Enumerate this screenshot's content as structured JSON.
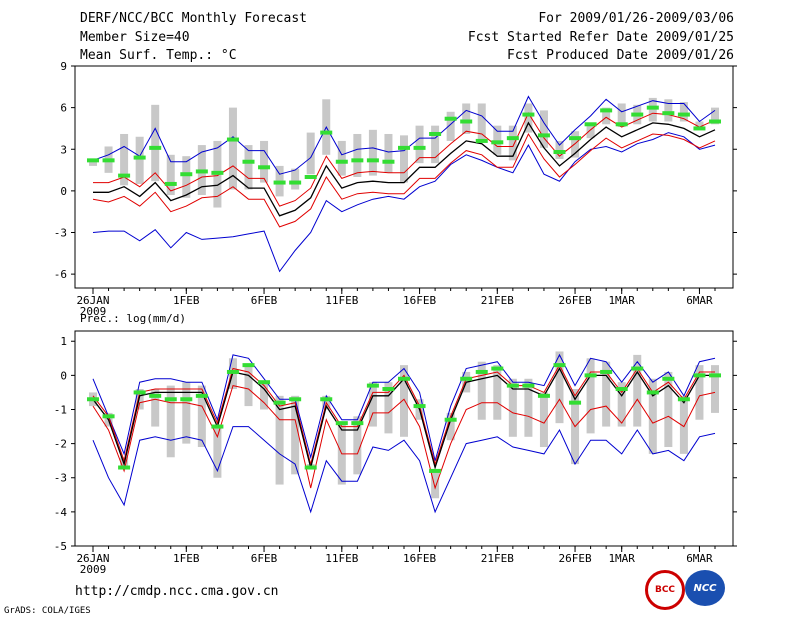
{
  "header": {
    "title": "DERF/NCC/BCC Monthly Forecast",
    "member_size": "Member Size=40",
    "variable": "Mean Surf. Temp.: °C",
    "period": "For 2009/01/26-2009/03/06",
    "started": "Fcst Started Refer Date 2009/01/25",
    "produced": "Fcst Produced Date 2009/01/26"
  },
  "footer": {
    "url": "http://cmdp.ncc.cma.gov.cn",
    "grads": "GrADS: COLA/IGES",
    "logo1_text": "BCC",
    "logo2_text": "NCC"
  },
  "colors": {
    "bar": "#c8c8c8",
    "mean": "#000000",
    "inner": "#e00000",
    "outer": "#0000d0",
    "marker": "#33dd33"
  },
  "chart_data": [
    {
      "type": "line",
      "title": "Mean Surf. Temp.: °C",
      "x_labels": [
        {
          "day": 0,
          "label": "26JAN"
        },
        {
          "day": 6,
          "label": "1FEB"
        },
        {
          "day": 11,
          "label": "6FEB"
        },
        {
          "day": 16,
          "label": "11FEB"
        },
        {
          "day": 21,
          "label": "16FEB"
        },
        {
          "day": 26,
          "label": "21FEB"
        },
        {
          "day": 31,
          "label": "26FEB"
        },
        {
          "day": 34,
          "label": "1MAR"
        },
        {
          "day": 39,
          "label": "6MAR"
        }
      ],
      "year_label": "2009",
      "ylim": [
        -7,
        9
      ],
      "yticks": [
        -6,
        -3,
        0,
        3,
        6,
        9
      ],
      "series": [
        {
          "name": "mean",
          "values": [
            -0.1,
            -0.1,
            0.3,
            -0.4,
            0.6,
            -0.7,
            -0.3,
            0.3,
            0.4,
            1.1,
            0.2,
            0.2,
            -1.8,
            -1.4,
            -0.5,
            1.8,
            0.2,
            0.6,
            0.7,
            0.6,
            0.6,
            1.7,
            1.7,
            2.7,
            3.6,
            3.4,
            2.5,
            2.5,
            4.9,
            3.1,
            1.8,
            2.7,
            3.7,
            4.6,
            3.9,
            4.4,
            4.9,
            4.8,
            4.5,
            3.9,
            4.4
          ]
        },
        {
          "name": "upper_inner",
          "values": [
            0.6,
            0.6,
            1.0,
            0.3,
            1.3,
            0.0,
            0.4,
            1.0,
            1.1,
            1.8,
            0.9,
            0.9,
            -1.1,
            -0.7,
            0.2,
            2.5,
            0.9,
            1.3,
            1.4,
            1.3,
            1.3,
            2.4,
            2.4,
            3.4,
            4.3,
            4.1,
            3.2,
            3.2,
            5.6,
            3.8,
            2.5,
            3.4,
            4.4,
            5.3,
            4.6,
            5.1,
            5.6,
            5.5,
            5.2,
            4.6,
            5.1
          ]
        },
        {
          "name": "lower_inner",
          "values": [
            -0.6,
            -0.8,
            -0.4,
            -1.1,
            -0.1,
            -1.5,
            -1.1,
            -0.5,
            -0.4,
            0.3,
            -0.6,
            -0.6,
            -2.6,
            -2.2,
            -1.3,
            1.0,
            -0.6,
            -0.2,
            -0.1,
            -0.2,
            -0.2,
            0.9,
            0.9,
            2.0,
            2.9,
            2.6,
            1.7,
            1.7,
            4.1,
            2.3,
            1.0,
            1.9,
            2.9,
            3.8,
            3.1,
            3.6,
            4.1,
            4.0,
            3.7,
            3.1,
            3.6
          ]
        },
        {
          "name": "upper_outer",
          "values": [
            2.2,
            2.6,
            3.2,
            2.5,
            4.5,
            2.1,
            2.1,
            2.8,
            3.1,
            3.9,
            2.9,
            2.9,
            1.2,
            1.5,
            2.4,
            4.6,
            2.6,
            3.0,
            3.1,
            2.8,
            2.9,
            3.8,
            3.8,
            4.8,
            5.8,
            5.4,
            4.3,
            4.3,
            6.8,
            4.9,
            3.3,
            4.4,
            5.4,
            6.6,
            5.7,
            6.1,
            6.5,
            6.3,
            6.3,
            5.0,
            5.8
          ]
        },
        {
          "name": "lower_outer",
          "values": [
            -3.0,
            -2.9,
            -2.9,
            -3.6,
            -2.8,
            -4.1,
            -3.0,
            -3.5,
            -3.4,
            -3.3,
            -3.1,
            -2.9,
            -5.8,
            -4.3,
            -3.0,
            -0.7,
            -1.5,
            -1.0,
            -0.6,
            -0.4,
            -0.6,
            0.3,
            0.7,
            1.9,
            2.6,
            2.2,
            1.7,
            1.3,
            3.3,
            1.2,
            0.7,
            2.1,
            3.0,
            3.2,
            2.8,
            3.4,
            3.7,
            4.2,
            3.9,
            3.0,
            3.3
          ]
        },
        {
          "name": "bar_top",
          "values": [
            2.2,
            3.2,
            4.1,
            3.9,
            6.2,
            2.6,
            2.5,
            3.3,
            3.6,
            6.0,
            3.3,
            3.6,
            1.8,
            1.6,
            4.2,
            6.6,
            3.6,
            4.1,
            4.4,
            4.1,
            4.0,
            4.7,
            4.7,
            5.7,
            6.3,
            6.3,
            4.7,
            4.7,
            6.3,
            5.8,
            3.6,
            4.3,
            4.9,
            6.0,
            6.3,
            6.2,
            6.7,
            6.6,
            6.4,
            5.0,
            6.0
          ]
        },
        {
          "name": "bar_bottom",
          "values": [
            1.8,
            1.3,
            0.4,
            0.5,
            0.7,
            -0.3,
            -0.5,
            -0.3,
            -1.2,
            0.1,
            0.1,
            0.6,
            -0.4,
            0.1,
            1.2,
            2.6,
            1.1,
            1.0,
            1.1,
            1.3,
            0.6,
            2.0,
            2.0,
            3.6,
            4.1,
            3.6,
            2.6,
            2.2,
            4.2,
            3.1,
            2.3,
            2.4,
            3.8,
            4.8,
            4.6,
            4.8,
            5.0,
            5.0,
            5.0,
            4.6,
            4.8
          ]
        },
        {
          "name": "marker",
          "values": [
            2.2,
            2.2,
            1.1,
            2.4,
            3.1,
            0.5,
            1.2,
            1.4,
            1.3,
            3.7,
            2.1,
            1.7,
            0.6,
            0.6,
            1.0,
            4.2,
            2.1,
            2.2,
            2.2,
            2.1,
            3.1,
            3.1,
            4.1,
            5.2,
            5.0,
            3.6,
            3.5,
            3.8,
            5.5,
            4.0,
            2.8,
            3.8,
            4.8,
            5.8,
            4.8,
            5.5,
            6.0,
            5.6,
            5.5,
            4.5,
            5.0
          ]
        }
      ]
    },
    {
      "type": "line",
      "title": "Prec.: log(mm/d)",
      "x_labels": [
        {
          "day": 0,
          "label": "26JAN"
        },
        {
          "day": 6,
          "label": "1FEB"
        },
        {
          "day": 11,
          "label": "6FEB"
        },
        {
          "day": 16,
          "label": "11FEB"
        },
        {
          "day": 21,
          "label": "16FEB"
        },
        {
          "day": 26,
          "label": "21FEB"
        },
        {
          "day": 31,
          "label": "26FEB"
        },
        {
          "day": 34,
          "label": "1MAR"
        },
        {
          "day": 39,
          "label": "6MAR"
        }
      ],
      "year_label": "2009",
      "ylim": [
        -5,
        1.3
      ],
      "yticks": [
        -5,
        -4,
        -3,
        -2,
        -1,
        0,
        1
      ],
      "series": [
        {
          "name": "mean",
          "values": [
            -0.7,
            -1.3,
            -2.6,
            -0.6,
            -0.5,
            -0.5,
            -0.5,
            -0.5,
            -1.5,
            0.1,
            0.0,
            -0.4,
            -1.0,
            -0.9,
            -2.7,
            -0.9,
            -1.6,
            -1.6,
            -0.6,
            -0.6,
            -0.1,
            -1.0,
            -2.7,
            -1.3,
            -0.2,
            -0.1,
            0.0,
            -0.4,
            -0.4,
            -0.6,
            0.2,
            -0.7,
            0.0,
            0.0,
            -0.6,
            0.1,
            -0.6,
            -0.3,
            -0.8,
            0.0,
            0.0
          ]
        },
        {
          "name": "upper_inner",
          "values": [
            -0.6,
            -1.2,
            -2.5,
            -0.5,
            -0.4,
            -0.4,
            -0.4,
            -0.4,
            -1.4,
            0.2,
            0.1,
            -0.3,
            -0.9,
            -0.8,
            -2.6,
            -0.8,
            -1.5,
            -1.5,
            -0.5,
            -0.5,
            0.0,
            -0.9,
            -2.6,
            -1.2,
            -0.1,
            0.0,
            0.1,
            -0.3,
            -0.3,
            -0.5,
            0.3,
            -0.6,
            0.1,
            0.1,
            -0.5,
            0.2,
            -0.5,
            -0.2,
            -0.7,
            0.1,
            0.1
          ]
        },
        {
          "name": "lower_inner",
          "values": [
            -0.9,
            -1.6,
            -2.8,
            -0.8,
            -0.7,
            -0.8,
            -0.8,
            -0.9,
            -1.8,
            -0.3,
            -0.4,
            -0.8,
            -1.3,
            -1.3,
            -3.3,
            -1.3,
            -2.3,
            -2.3,
            -1.1,
            -1.1,
            -0.7,
            -1.5,
            -3.3,
            -2.0,
            -1.0,
            -0.8,
            -0.8,
            -1.1,
            -1.2,
            -1.4,
            -0.7,
            -1.5,
            -1.0,
            -0.9,
            -1.4,
            -0.7,
            -1.4,
            -1.2,
            -1.5,
            -0.6,
            -0.5
          ]
        },
        {
          "name": "upper_outer",
          "values": [
            -0.1,
            -1.2,
            -2.3,
            -0.2,
            -0.1,
            -0.1,
            -0.2,
            -0.2,
            -1.3,
            0.6,
            0.5,
            -0.1,
            -0.7,
            -0.7,
            -2.4,
            -0.6,
            -1.3,
            -1.3,
            -0.2,
            -0.2,
            0.2,
            -0.5,
            -2.5,
            -0.9,
            0.2,
            0.3,
            0.4,
            -0.2,
            -0.2,
            -0.3,
            0.6,
            -0.3,
            0.5,
            0.4,
            -0.2,
            0.4,
            -0.2,
            0.1,
            -0.6,
            0.4,
            0.5
          ]
        },
        {
          "name": "lower_outer",
          "values": [
            -1.9,
            -3.0,
            -3.8,
            -1.9,
            -1.8,
            -1.9,
            -1.8,
            -1.9,
            -2.8,
            -1.5,
            -1.5,
            -1.9,
            -2.3,
            -2.6,
            -4.0,
            -2.5,
            -3.1,
            -3.1,
            -2.1,
            -2.2,
            -1.9,
            -2.5,
            -4.0,
            -3.0,
            -2.0,
            -1.9,
            -1.8,
            -2.1,
            -2.2,
            -2.3,
            -1.6,
            -2.6,
            -1.9,
            -1.9,
            -2.3,
            -1.6,
            -2.3,
            -2.2,
            -2.5,
            -1.8,
            -1.7
          ]
        },
        {
          "name": "bar_top",
          "values": [
            -0.5,
            -1.1,
            -2.4,
            -0.4,
            -0.4,
            -0.3,
            -0.2,
            -0.3,
            -1.5,
            0.5,
            0.3,
            -0.2,
            -0.6,
            -0.6,
            -2.7,
            -0.6,
            -1.4,
            -1.2,
            -0.2,
            -0.2,
            0.3,
            -0.7,
            -2.8,
            -1.1,
            0.1,
            0.4,
            0.3,
            -0.1,
            -0.1,
            -0.5,
            0.7,
            -0.4,
            0.5,
            0.4,
            -0.2,
            0.6,
            -0.1,
            0.1,
            -0.6,
            0.3,
            0.3
          ]
        },
        {
          "name": "bar_bottom",
          "values": [
            -0.9,
            -1.5,
            -2.7,
            -1.0,
            -1.5,
            -2.4,
            -2.0,
            -2.1,
            -3.0,
            -0.4,
            -0.9,
            -1.0,
            -3.2,
            -2.9,
            -2.6,
            -1.0,
            -3.2,
            -2.9,
            -1.5,
            -1.7,
            -1.8,
            -1.3,
            -3.6,
            -1.9,
            -0.5,
            -1.3,
            -1.3,
            -1.8,
            -1.8,
            -2.1,
            -1.4,
            -2.6,
            -1.7,
            -1.5,
            -1.5,
            -1.5,
            -2.3,
            -2.1,
            -2.3,
            -1.3,
            -1.1
          ]
        },
        {
          "name": "marker",
          "values": [
            -0.7,
            -1.2,
            -2.7,
            -0.5,
            -0.6,
            -0.7,
            -0.7,
            -0.6,
            -1.5,
            0.1,
            0.3,
            -0.2,
            -0.8,
            -0.7,
            -2.7,
            -0.7,
            -1.4,
            -1.4,
            -0.3,
            -0.4,
            -0.1,
            -0.9,
            -2.8,
            -1.3,
            -0.1,
            0.1,
            0.2,
            -0.3,
            -0.3,
            -0.6,
            0.3,
            -0.8,
            0.0,
            0.1,
            -0.4,
            0.2,
            -0.5,
            -0.1,
            -0.7,
            0.0,
            0.0
          ]
        }
      ]
    }
  ]
}
